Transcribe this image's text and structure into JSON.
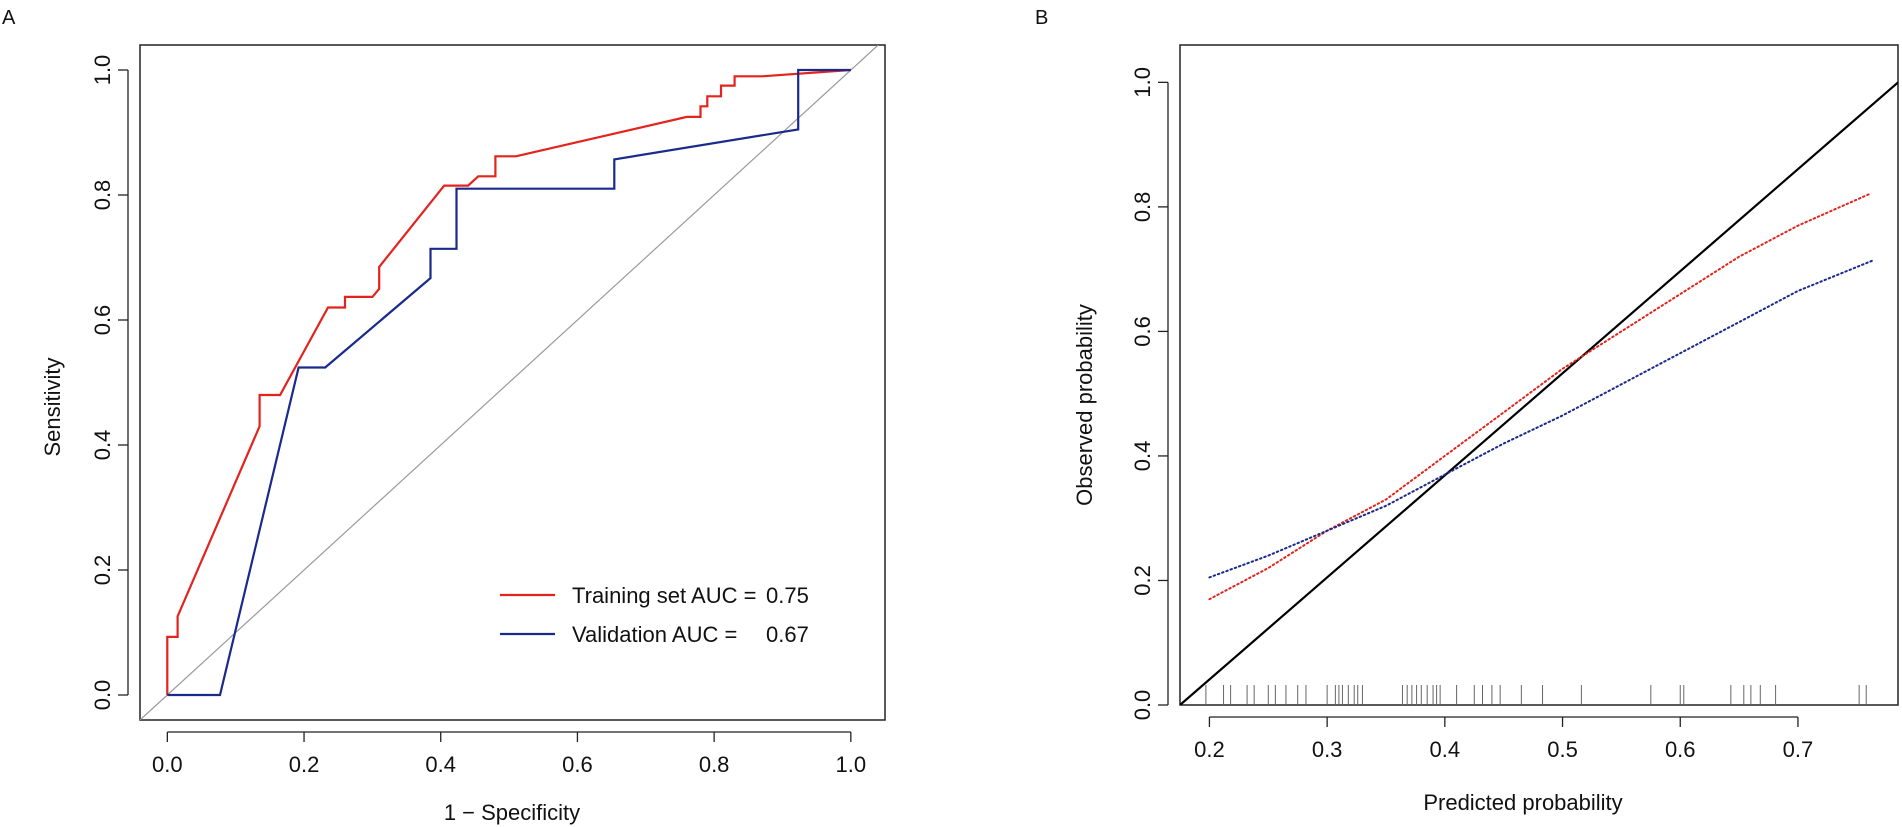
{
  "panels": {
    "a": {
      "label": "A"
    },
    "b": {
      "label": "B"
    }
  },
  "colors": {
    "training": "#e3231c",
    "validation": "#1a2a8c",
    "reference": "#9a9a9a",
    "ideal": "#000000",
    "rug": "#666666"
  },
  "chart_data": [
    {
      "id": "roc",
      "type": "line",
      "title": "",
      "xlabel": "1 − Specificity",
      "ylabel": "Sensitivity",
      "xlim": [
        -0.04,
        1.05
      ],
      "ylim": [
        -0.04,
        1.04
      ],
      "xticks": [
        0.0,
        0.2,
        0.4,
        0.6,
        0.8,
        1.0
      ],
      "xtick_labels": [
        "0.0",
        "0.2",
        "0.4",
        "0.6",
        "0.8",
        "1.0"
      ],
      "yticks": [
        0.0,
        0.2,
        0.4,
        0.6,
        0.8,
        1.0
      ],
      "ytick_labels": [
        "0.0",
        "0.2",
        "0.4",
        "0.6",
        "0.8",
        "1.0"
      ],
      "grid": false,
      "legend_position": "bottom-right",
      "reference_line": {
        "name": "chance",
        "points": [
          [
            -0.04,
            -0.04
          ],
          [
            1.04,
            1.04
          ]
        ]
      },
      "series": [
        {
          "name": "Training set",
          "legend_label": "Training set AUC =",
          "auc": "0.75",
          "points": [
            [
              0.0,
              0.0
            ],
            [
              0.0,
              0.093
            ],
            [
              0.015,
              0.093
            ],
            [
              0.015,
              0.126
            ],
            [
              0.135,
              0.43
            ],
            [
              0.135,
              0.48
            ],
            [
              0.165,
              0.48
            ],
            [
              0.235,
              0.62
            ],
            [
              0.26,
              0.62
            ],
            [
              0.26,
              0.637
            ],
            [
              0.3,
              0.637
            ],
            [
              0.31,
              0.65
            ],
            [
              0.31,
              0.685
            ],
            [
              0.405,
              0.815
            ],
            [
              0.44,
              0.815
            ],
            [
              0.455,
              0.83
            ],
            [
              0.48,
              0.83
            ],
            [
              0.48,
              0.862
            ],
            [
              0.51,
              0.862
            ],
            [
              0.76,
              0.925
            ],
            [
              0.78,
              0.925
            ],
            [
              0.78,
              0.942
            ],
            [
              0.79,
              0.942
            ],
            [
              0.79,
              0.958
            ],
            [
              0.81,
              0.958
            ],
            [
              0.81,
              0.975
            ],
            [
              0.83,
              0.975
            ],
            [
              0.83,
              0.99
            ],
            [
              0.87,
              0.99
            ],
            [
              1.0,
              1.0
            ]
          ]
        },
        {
          "name": "Validation",
          "legend_label": "Validation AUC =",
          "auc": "0.67",
          "points": [
            [
              0.0,
              0.0
            ],
            [
              0.077,
              0.0
            ],
            [
              0.192,
              0.524
            ],
            [
              0.231,
              0.524
            ],
            [
              0.385,
              0.667
            ],
            [
              0.385,
              0.714
            ],
            [
              0.423,
              0.714
            ],
            [
              0.423,
              0.81
            ],
            [
              0.654,
              0.81
            ],
            [
              0.654,
              0.857
            ],
            [
              0.923,
              0.905
            ],
            [
              0.923,
              1.0
            ],
            [
              1.0,
              1.0
            ]
          ]
        }
      ]
    },
    {
      "id": "calibration",
      "type": "line",
      "title": "",
      "xlabel": "Predicted probability",
      "ylabel": "Observed probability",
      "xlim": [
        0.175,
        0.785
      ],
      "ylim": [
        0.0,
        1.06
      ],
      "xticks": [
        0.2,
        0.3,
        0.4,
        0.5,
        0.6,
        0.7
      ],
      "xtick_labels": [
        "0.2",
        "0.3",
        "0.4",
        "0.5",
        "0.6",
        "0.7"
      ],
      "yticks": [
        0.0,
        0.2,
        0.4,
        0.6,
        0.8,
        1.0
      ],
      "ytick_labels": [
        "0.0",
        "0.2",
        "0.4",
        "0.6",
        "0.8",
        "1.0"
      ],
      "grid": false,
      "ideal_line": {
        "name": "ideal",
        "points": [
          [
            0.175,
            0.0
          ],
          [
            0.785,
            1.0
          ]
        ]
      },
      "series": [
        {
          "name": "Training set",
          "style": "dotted",
          "points": [
            [
              0.2,
              0.17
            ],
            [
              0.25,
              0.22
            ],
            [
              0.3,
              0.28
            ],
            [
              0.35,
              0.33
            ],
            [
              0.4,
              0.4
            ],
            [
              0.45,
              0.47
            ],
            [
              0.5,
              0.54
            ],
            [
              0.55,
              0.6
            ],
            [
              0.6,
              0.66
            ],
            [
              0.65,
              0.72
            ],
            [
              0.7,
              0.77
            ],
            [
              0.76,
              0.82
            ]
          ]
        },
        {
          "name": "Validation",
          "style": "dotted",
          "points": [
            [
              0.2,
              0.205
            ],
            [
              0.25,
              0.24
            ],
            [
              0.3,
              0.28
            ],
            [
              0.35,
              0.32
            ],
            [
              0.4,
              0.37
            ],
            [
              0.45,
              0.42
            ],
            [
              0.5,
              0.465
            ],
            [
              0.55,
              0.515
            ],
            [
              0.6,
              0.565
            ],
            [
              0.65,
              0.615
            ],
            [
              0.7,
              0.665
            ],
            [
              0.765,
              0.715
            ]
          ]
        }
      ],
      "rug_x": [
        0.197,
        0.212,
        0.218,
        0.232,
        0.238,
        0.25,
        0.256,
        0.265,
        0.275,
        0.282,
        0.3,
        0.307,
        0.31,
        0.313,
        0.318,
        0.323,
        0.326,
        0.33,
        0.364,
        0.368,
        0.372,
        0.376,
        0.38,
        0.385,
        0.39,
        0.393,
        0.396,
        0.41,
        0.425,
        0.432,
        0.44,
        0.447,
        0.465,
        0.483,
        0.516,
        0.575,
        0.6,
        0.603,
        0.643,
        0.654,
        0.66,
        0.668,
        0.681,
        0.752,
        0.758
      ]
    }
  ]
}
